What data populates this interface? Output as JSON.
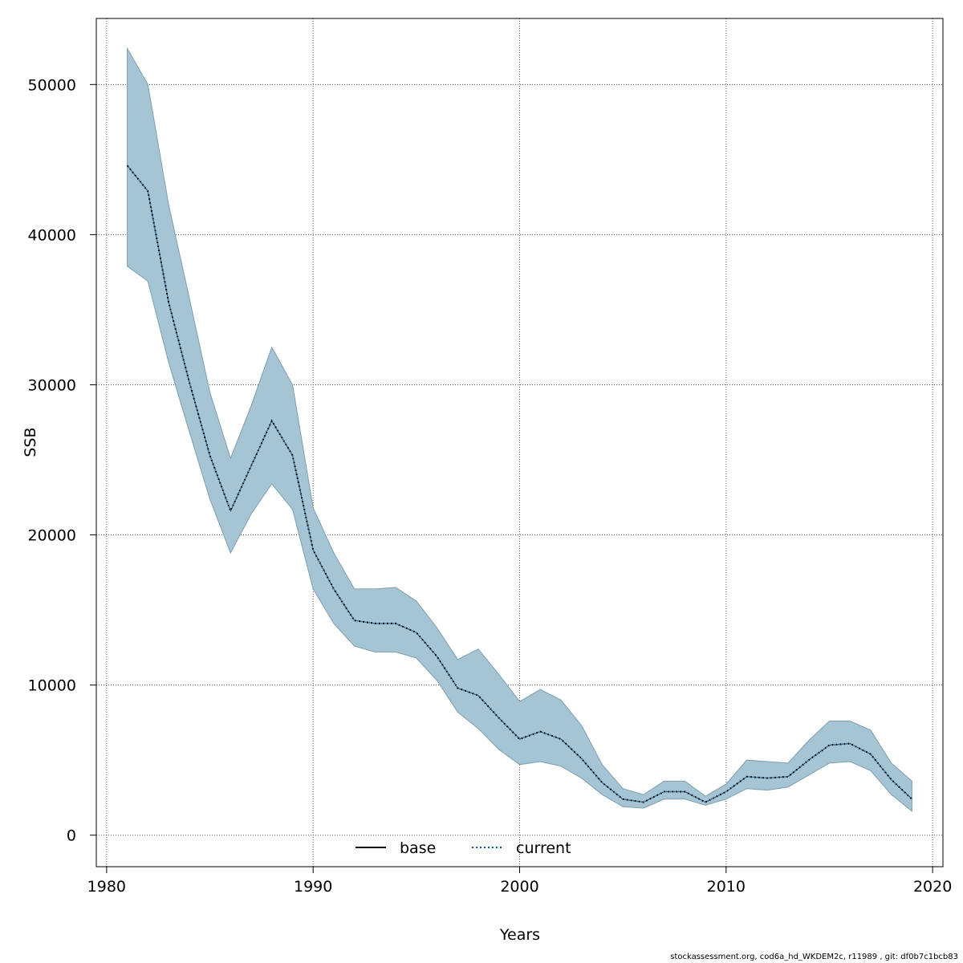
{
  "chart_data": {
    "type": "area",
    "xlabel": "Years",
    "ylabel": "SSB",
    "xlim": [
      1979.5,
      2020.5
    ],
    "ylim": [
      -2100,
      54400
    ],
    "x_ticks": [
      1980,
      1990,
      2000,
      2010,
      2020
    ],
    "y_ticks": [
      0,
      10000,
      20000,
      30000,
      40000,
      50000
    ],
    "grid": true,
    "legend_position": "bottom-center",
    "x": [
      1981,
      1982,
      1983,
      1984,
      1985,
      1986,
      1987,
      1988,
      1989,
      1990,
      1991,
      1992,
      1993,
      1994,
      1995,
      1996,
      1997,
      1998,
      1999,
      2000,
      2001,
      2002,
      2003,
      2004,
      2005,
      2006,
      2007,
      2008,
      2009,
      2010,
      2011,
      2012,
      2013,
      2014,
      2015,
      2016,
      2017,
      2018,
      2019
    ],
    "series": [
      {
        "name": "base",
        "style": "solid",
        "color": "#000000",
        "values": [
          44600,
          42900,
          35500,
          30200,
          25300,
          21600,
          24600,
          27600,
          25300,
          19000,
          16400,
          14300,
          14100,
          14100,
          13500,
          11900,
          9800,
          9300,
          7800,
          6400,
          6900,
          6400,
          5100,
          3500,
          2400,
          2200,
          2900,
          2900,
          2200,
          2900,
          3900,
          3800,
          3900,
          5000,
          6000,
          6100,
          5400,
          3700,
          2400
        ]
      },
      {
        "name": "current",
        "style": "dotted",
        "color": "#005b96",
        "values": [
          44600,
          42900,
          35500,
          30200,
          25300,
          21600,
          24600,
          27600,
          25300,
          19000,
          16400,
          14300,
          14100,
          14100,
          13500,
          11900,
          9800,
          9300,
          7800,
          6400,
          6900,
          6400,
          5100,
          3500,
          2400,
          2200,
          2900,
          2900,
          2200,
          2900,
          3900,
          3800,
          3900,
          5000,
          6000,
          6100,
          5400,
          3700,
          2400
        ]
      }
    ],
    "band": {
      "color": "#a5c4d4",
      "edge_color": "#7f9fae",
      "upper": [
        52400,
        50000,
        42000,
        35800,
        29500,
        25100,
        28600,
        32500,
        30000,
        21800,
        18800,
        16400,
        16400,
        16500,
        15600,
        13800,
        11700,
        12400,
        10700,
        8900,
        9700,
        9000,
        7300,
        4700,
        3100,
        2700,
        3600,
        3600,
        2600,
        3400,
        5000,
        4900,
        4800,
        6300,
        7600,
        7600,
        7000,
        4800,
        3600
      ],
      "lower": [
        37900,
        36900,
        31500,
        26900,
        22400,
        18800,
        21400,
        23400,
        21700,
        16400,
        14100,
        12600,
        12200,
        12200,
        11800,
        10300,
        8200,
        7100,
        5700,
        4700,
        4900,
        4600,
        3800,
        2700,
        1900,
        1800,
        2400,
        2400,
        2000,
        2400,
        3100,
        3000,
        3200,
        4000,
        4800,
        4900,
        4300,
        2700,
        1600
      ]
    }
  },
  "footer": "stockassessment.org, cod6a_hd_WKDEM2c, r11989 , git: df0b7c1bcb83"
}
